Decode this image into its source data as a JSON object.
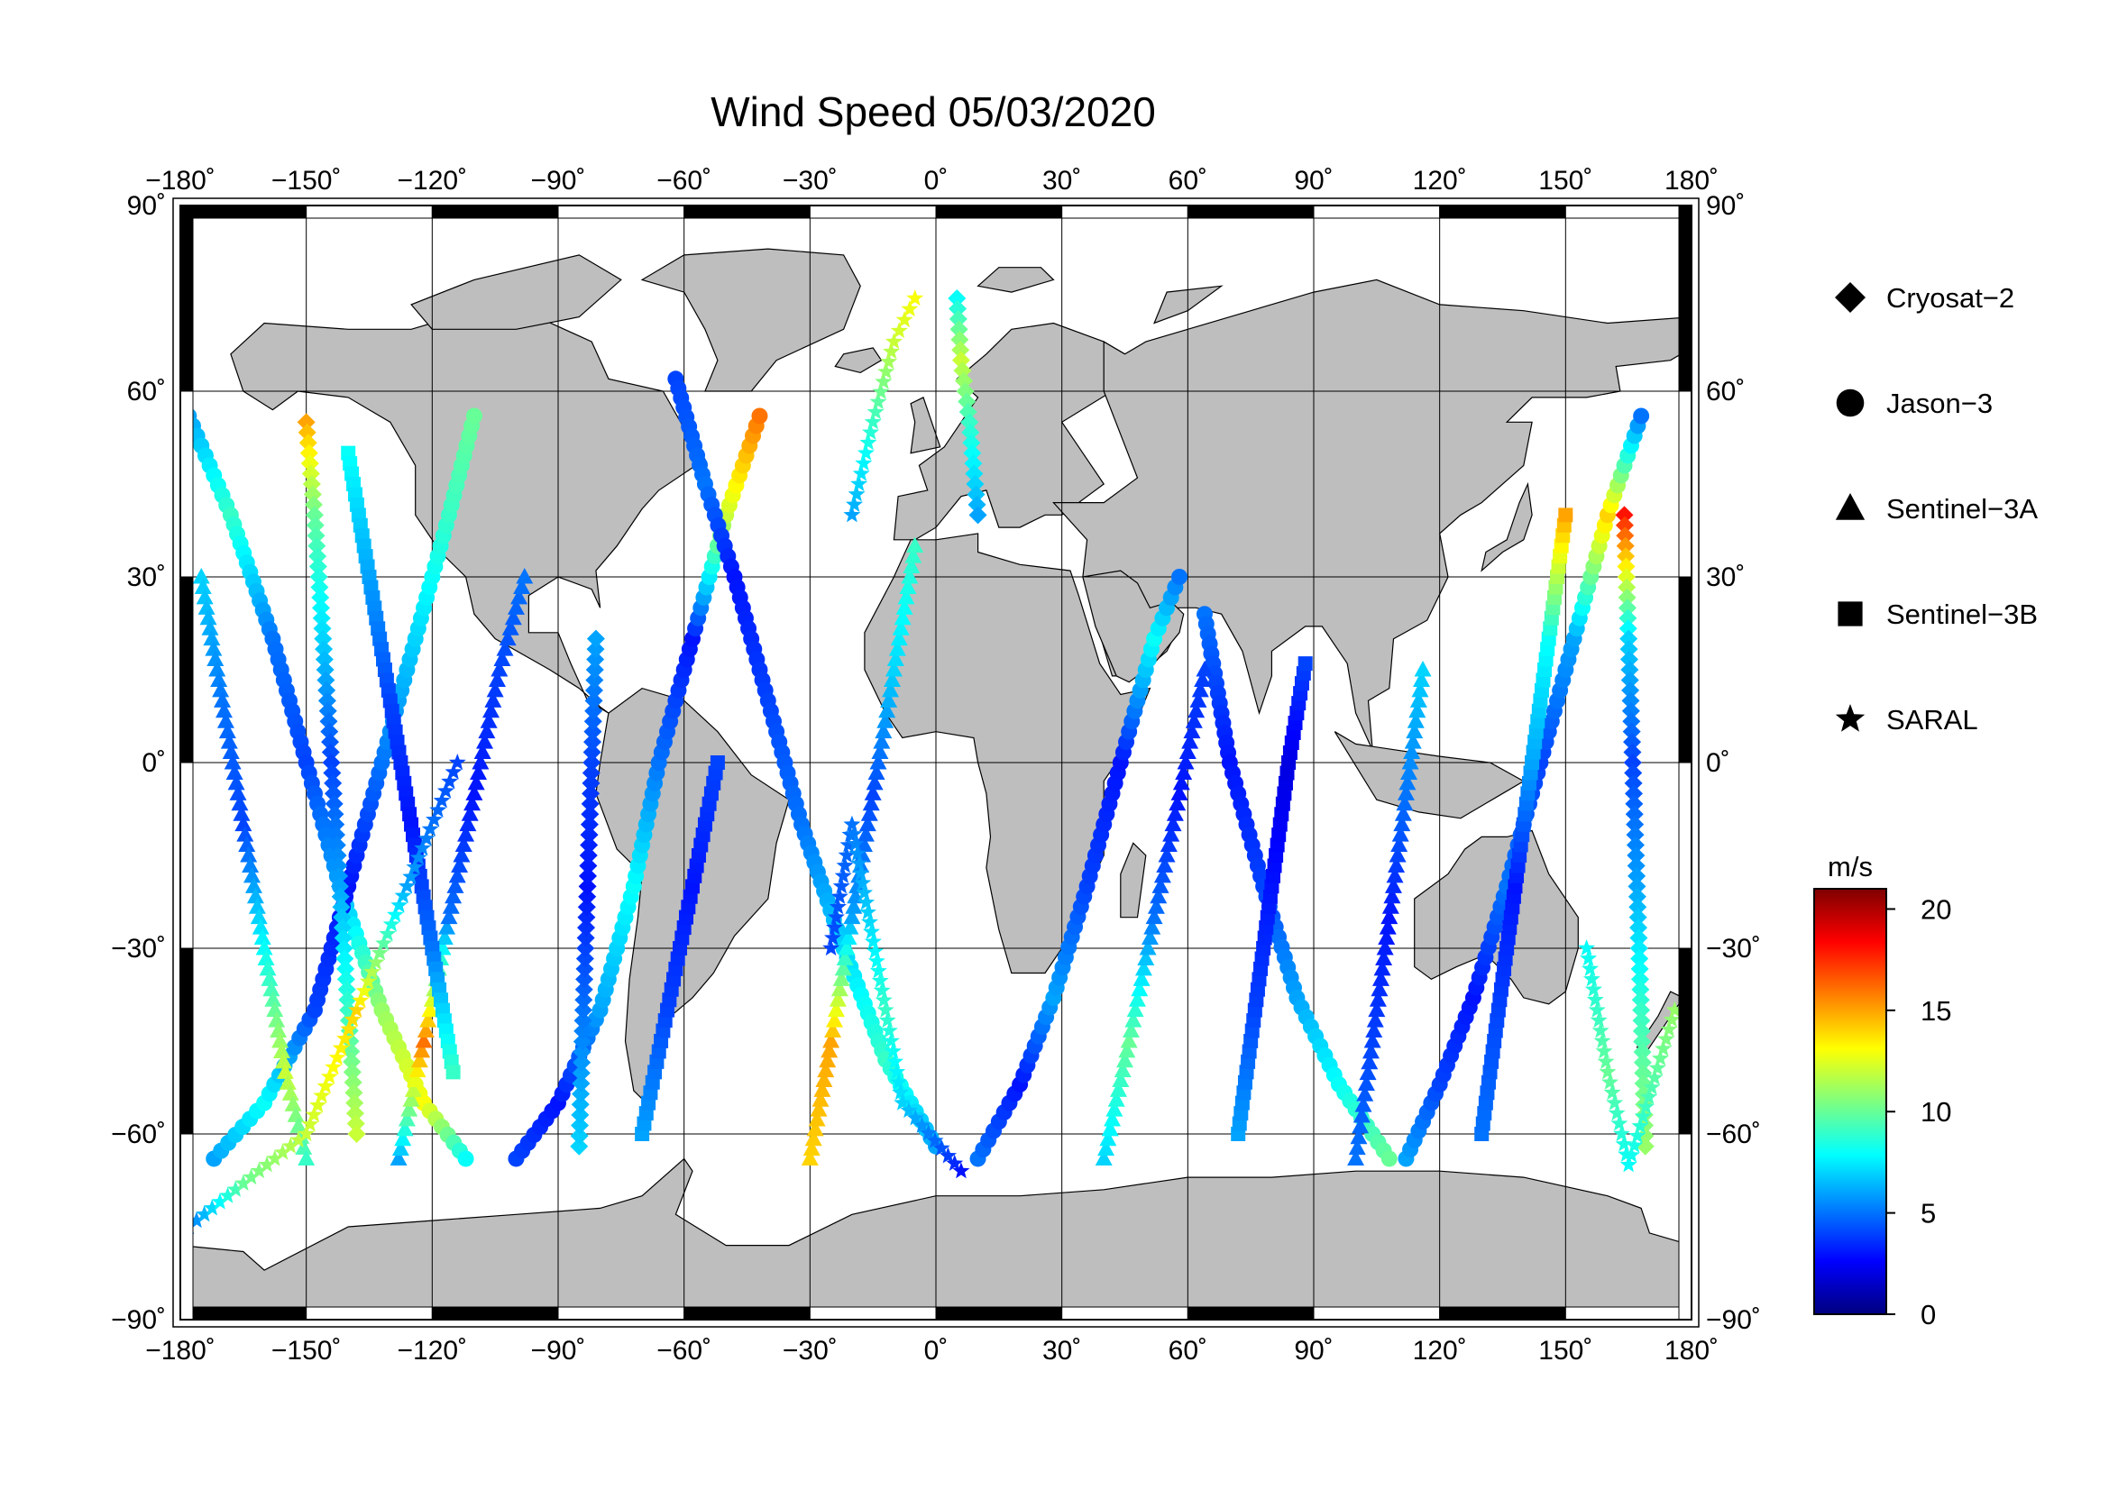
{
  "title": "Wind Speed 05/03/2020",
  "map": {
    "projection": "equirectangular",
    "lon_range": [
      -180,
      180
    ],
    "lat_range": [
      -90,
      90
    ],
    "land_color": "#bebebe",
    "ocean_color": "#ffffff",
    "grid": true,
    "lon_ticks": [
      {
        "value": -180,
        "label": "−180˚"
      },
      {
        "value": -150,
        "label": "−150˚"
      },
      {
        "value": -120,
        "label": "−120˚"
      },
      {
        "value": -90,
        "label": "−90˚"
      },
      {
        "value": -60,
        "label": "−60˚"
      },
      {
        "value": -30,
        "label": "−30˚"
      },
      {
        "value": 0,
        "label": "0˚"
      },
      {
        "value": 30,
        "label": "30˚"
      },
      {
        "value": 60,
        "label": "60˚"
      },
      {
        "value": 90,
        "label": "90˚"
      },
      {
        "value": 120,
        "label": "120˚"
      },
      {
        "value": 150,
        "label": "150˚"
      },
      {
        "value": 180,
        "label": "180˚"
      }
    ],
    "lat_ticks": [
      {
        "value": 90,
        "label": "90˚"
      },
      {
        "value": 60,
        "label": "60˚"
      },
      {
        "value": 30,
        "label": "30˚"
      },
      {
        "value": 0,
        "label": "0˚"
      },
      {
        "value": -30,
        "label": "−30˚"
      },
      {
        "value": -60,
        "label": "−60˚"
      },
      {
        "value": -90,
        "label": "−90˚"
      }
    ]
  },
  "legend": {
    "placement": "right",
    "items": [
      {
        "label": "Cryosat−2",
        "marker": "diamond"
      },
      {
        "label": "Jason−3",
        "marker": "circle"
      },
      {
        "label": "Sentinel−3A",
        "marker": "triangle"
      },
      {
        "label": "Sentinel−3B",
        "marker": "square"
      },
      {
        "label": "SARAL",
        "marker": "star"
      }
    ]
  },
  "colorbar": {
    "unit": "m/s",
    "min": 0,
    "max": 21,
    "tick_labels": [
      {
        "value": 20,
        "label": "20"
      },
      {
        "value": 15,
        "label": "15"
      },
      {
        "value": 10,
        "label": "10"
      },
      {
        "value": 5,
        "label": "5"
      },
      {
        "value": 0,
        "label": "0"
      }
    ],
    "colormap": [
      "#00007f",
      "#0000ff",
      "#007fff",
      "#00ffff",
      "#7fff7f",
      "#ffff00",
      "#ff7f00",
      "#ff0000",
      "#7f0000"
    ]
  },
  "chart_data": {
    "type": "scatter",
    "xlabel": "",
    "ylabel": "",
    "xlim": [
      -180,
      180
    ],
    "ylim": [
      -90,
      90
    ],
    "tracks": [
      {
        "series": "Jason−3",
        "marker": "circle",
        "points": [
          [
            -178,
            56,
            6
          ],
          [
            -168,
            40,
            9
          ],
          [
            -158,
            20,
            5
          ],
          [
            -150,
            0,
            4
          ],
          [
            -142,
            -20,
            6
          ],
          [
            -132,
            -40,
            11
          ],
          [
            -122,
            -55,
            13
          ],
          [
            -112,
            -64,
            8
          ]
        ]
      },
      {
        "series": "Jason−3",
        "marker": "circle",
        "points": [
          [
            -172,
            -64,
            6
          ],
          [
            -160,
            -55,
            8
          ],
          [
            -148,
            -40,
            4
          ],
          [
            -140,
            -20,
            3
          ],
          [
            -132,
            0,
            5
          ],
          [
            -124,
            20,
            7
          ],
          [
            -116,
            40,
            9
          ],
          [
            -110,
            56,
            10
          ]
        ]
      },
      {
        "series": "Jason−3",
        "marker": "circle",
        "points": [
          [
            -100,
            -64,
            4
          ],
          [
            -90,
            -55,
            3
          ],
          [
            -80,
            -40,
            6
          ],
          [
            -72,
            -20,
            8
          ],
          [
            -66,
            0,
            5
          ],
          [
            -58,
            20,
            3
          ],
          [
            -50,
            40,
            12
          ],
          [
            -42,
            56,
            16
          ]
        ]
      },
      {
        "series": "Jason−3",
        "marker": "circle",
        "points": [
          [
            -62,
            62,
            4
          ],
          [
            -55,
            45,
            5
          ],
          [
            -48,
            30,
            3
          ],
          [
            -40,
            10,
            4
          ],
          [
            -32,
            -10,
            5
          ],
          [
            -22,
            -30,
            7
          ],
          [
            -12,
            -48,
            9
          ],
          [
            0,
            -62,
            6
          ]
        ]
      },
      {
        "series": "Jason−3",
        "marker": "circle",
        "points": [
          [
            10,
            -64,
            5
          ],
          [
            20,
            -52,
            3
          ],
          [
            28,
            -38,
            6
          ],
          [
            36,
            -20,
            4
          ],
          [
            44,
            0,
            3
          ],
          [
            52,
            20,
            8
          ],
          [
            58,
            30,
            5
          ]
        ]
      },
      {
        "series": "Jason−3",
        "marker": "circle",
        "points": [
          [
            64,
            24,
            5
          ],
          [
            70,
            0,
            3
          ],
          [
            78,
            -20,
            4
          ],
          [
            86,
            -38,
            6
          ],
          [
            96,
            -52,
            8
          ],
          [
            108,
            -64,
            10
          ]
        ]
      },
      {
        "series": "Jason−3",
        "marker": "circle",
        "points": [
          [
            112,
            -64,
            6
          ],
          [
            120,
            -52,
            4
          ],
          [
            128,
            -38,
            3
          ],
          [
            136,
            -20,
            5
          ],
          [
            144,
            0,
            4
          ],
          [
            152,
            20,
            6
          ],
          [
            160,
            40,
            14
          ],
          [
            168,
            56,
            5
          ]
        ]
      },
      {
        "series": "Cryosat−2",
        "marker": "diamond",
        "points": [
          [
            -150,
            55,
            15
          ],
          [
            -148,
            40,
            10
          ],
          [
            -146,
            20,
            7
          ],
          [
            -144,
            0,
            4
          ],
          [
            -142,
            -20,
            6
          ],
          [
            -140,
            -40,
            9
          ],
          [
            -138,
            -60,
            12
          ]
        ]
      },
      {
        "series": "Cryosat−2",
        "marker": "diamond",
        "points": [
          [
            -85,
            -62,
            7
          ],
          [
            -84,
            -40,
            5
          ],
          [
            -83,
            -20,
            3
          ],
          [
            -82,
            0,
            4
          ],
          [
            -81,
            20,
            6
          ]
        ]
      },
      {
        "series": "Cryosat−2",
        "marker": "diamond",
        "points": [
          [
            5,
            75,
            8
          ],
          [
            6,
            65,
            12
          ],
          [
            8,
            55,
            9
          ],
          [
            10,
            40,
            6
          ]
        ]
      },
      {
        "series": "Cryosat−2",
        "marker": "diamond",
        "points": [
          [
            164,
            40,
            18
          ],
          [
            165,
            20,
            7
          ],
          [
            166,
            0,
            4
          ],
          [
            167,
            -20,
            6
          ],
          [
            168,
            -40,
            9
          ],
          [
            169,
            -62,
            11
          ]
        ]
      },
      {
        "series": "Sentinel−3A",
        "marker": "triangle",
        "points": [
          [
            -175,
            30,
            7
          ],
          [
            -170,
            10,
            5
          ],
          [
            -165,
            -10,
            4
          ],
          [
            -160,
            -30,
            8
          ],
          [
            -155,
            -50,
            12
          ],
          [
            -150,
            -64,
            9
          ]
        ]
      },
      {
        "series": "Sentinel−3A",
        "marker": "triangle",
        "points": [
          [
            -128,
            -64,
            6
          ],
          [
            -122,
            -45,
            16
          ],
          [
            -116,
            -25,
            5
          ],
          [
            -110,
            -5,
            3
          ],
          [
            -104,
            15,
            4
          ],
          [
            -98,
            30,
            5
          ]
        ]
      },
      {
        "series": "Sentinel−3A",
        "marker": "triangle",
        "points": [
          [
            -30,
            -64,
            14
          ],
          [
            -25,
            -45,
            15
          ],
          [
            -20,
            -25,
            6
          ],
          [
            -15,
            -5,
            4
          ],
          [
            -10,
            15,
            7
          ],
          [
            -5,
            35,
            9
          ]
        ]
      },
      {
        "series": "Sentinel−3A",
        "marker": "triangle",
        "points": [
          [
            40,
            -64,
            7
          ],
          [
            46,
            -45,
            10
          ],
          [
            52,
            -25,
            5
          ],
          [
            58,
            -5,
            3
          ],
          [
            64,
            15,
            4
          ]
        ]
      },
      {
        "series": "Sentinel−3A",
        "marker": "triangle",
        "points": [
          [
            100,
            -64,
            5
          ],
          [
            104,
            -45,
            4
          ],
          [
            108,
            -25,
            3
          ],
          [
            112,
            -5,
            5
          ],
          [
            116,
            15,
            7
          ]
        ]
      },
      {
        "series": "Sentinel−3B",
        "marker": "square",
        "points": [
          [
            -140,
            50,
            8
          ],
          [
            -135,
            30,
            6
          ],
          [
            -130,
            10,
            4
          ],
          [
            -125,
            -10,
            3
          ],
          [
            -120,
            -30,
            5
          ],
          [
            -115,
            -50,
            9
          ]
        ]
      },
      {
        "series": "Sentinel−3B",
        "marker": "square",
        "points": [
          [
            -70,
            -60,
            6
          ],
          [
            -64,
            -40,
            4
          ],
          [
            -58,
            -20,
            3
          ],
          [
            -52,
            0,
            4
          ]
        ]
      },
      {
        "series": "Sentinel−3B",
        "marker": "square",
        "points": [
          [
            72,
            -60,
            6
          ],
          [
            76,
            -40,
            4
          ],
          [
            80,
            -20,
            3
          ],
          [
            84,
            0,
            2
          ],
          [
            88,
            16,
            4
          ]
        ]
      },
      {
        "series": "Sentinel−3B",
        "marker": "square",
        "points": [
          [
            130,
            -60,
            5
          ],
          [
            134,
            -40,
            4
          ],
          [
            138,
            -20,
            3
          ],
          [
            142,
            0,
            6
          ],
          [
            146,
            20,
            8
          ],
          [
            150,
            40,
            15
          ]
        ]
      },
      {
        "series": "SARAL",
        "marker": "star",
        "points": [
          [
            -178,
            -75,
            5
          ],
          [
            -165,
            -68,
            10
          ],
          [
            -150,
            -60,
            12
          ],
          [
            -138,
            -40,
            14
          ],
          [
            -126,
            -20,
            6
          ],
          [
            -114,
            0,
            4
          ]
        ]
      },
      {
        "series": "SARAL",
        "marker": "star",
        "points": [
          [
            -20,
            40,
            6
          ],
          [
            -15,
            55,
            9
          ],
          [
            -10,
            68,
            12
          ],
          [
            -5,
            75,
            13
          ]
        ]
      },
      {
        "series": "SARAL",
        "marker": "star",
        "points": [
          [
            -25,
            -30,
            4
          ],
          [
            -20,
            -10,
            5
          ],
          [
            -12,
            -40,
            9
          ],
          [
            -8,
            -55,
            7
          ],
          [
            6,
            -66,
            3
          ]
        ]
      },
      {
        "series": "SARAL",
        "marker": "star",
        "points": [
          [
            155,
            -30,
            8
          ],
          [
            160,
            -50,
            10
          ],
          [
            165,
            -65,
            8
          ],
          [
            176,
            -40,
            11
          ]
        ]
      }
    ]
  }
}
